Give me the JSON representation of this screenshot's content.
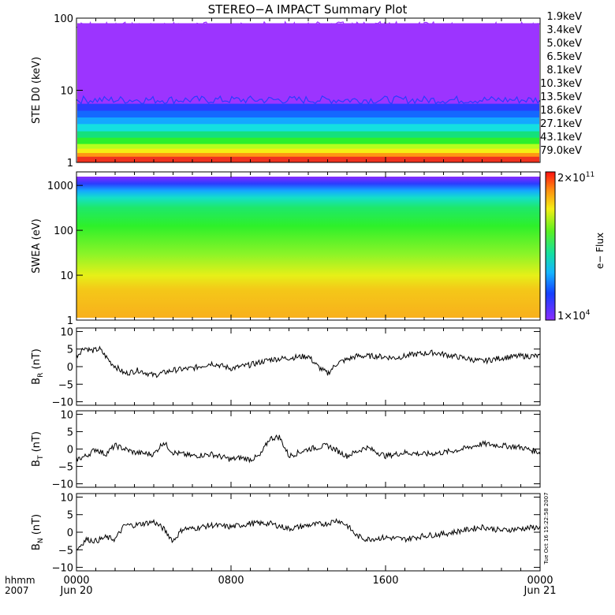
{
  "title": "STEREO−A IMPACT Summary Plot",
  "corner": {
    "line1": "hhmm",
    "line2": "2007"
  },
  "x_ticks": [
    "0000",
    "0800",
    "1600",
    "0000"
  ],
  "x_dates": [
    "Jun 20",
    "Jun 21"
  ],
  "colorbar": {
    "top": "2×10",
    "top_exp": "11",
    "bottom": "1×10",
    "bottom_exp": "4",
    "label": "e− Flux"
  },
  "timestamp": "Tue Oct 16 15:22:58 2007",
  "colors": {
    "channels": [
      "#9c34ff",
      "#2a3cff",
      "#1468ff",
      "#14a8ff",
      "#14e0e0",
      "#14e07c",
      "#2cf02c",
      "#b4ff1e",
      "#f4ee14",
      "#ff9614",
      "#f0321e"
    ]
  },
  "chart_data": [
    {
      "type": "line",
      "name": "ste",
      "ylabel": "STE D0 (keV)",
      "yscale": "log",
      "ylim": [
        1,
        100
      ],
      "y_ticks": [
        "1",
        "10",
        "100"
      ],
      "xlim_hours": [
        0,
        24
      ],
      "series": [
        {
          "name": "1.9keV",
          "level": 85
        },
        {
          "name": "3.4keV",
          "level": 6.5
        },
        {
          "name": "5.0keV",
          "level": 5.2
        },
        {
          "name": "6.5keV",
          "level": 4.2
        },
        {
          "name": "8.1keV",
          "level": 3.4
        },
        {
          "name": "10.3keV",
          "level": 2.7
        },
        {
          "name": "13.5keV",
          "level": 2.2
        },
        {
          "name": "18.6keV",
          "level": 1.8
        },
        {
          "name": "27.1keV",
          "level": 1.55
        },
        {
          "name": "43.1keV",
          "level": 1.35
        },
        {
          "name": "79.0keV",
          "level": 1.2
        }
      ]
    },
    {
      "type": "heatmap",
      "name": "swea",
      "ylabel": "SWEA (eV)",
      "yscale": "log",
      "ylim": [
        1,
        2000
      ],
      "y_ticks": [
        "1",
        "10",
        "100",
        "1000"
      ],
      "xlim_hours": [
        0,
        24
      ],
      "color_label": "e− Flux",
      "color_range": [
        10000,
        200000000000
      ]
    },
    {
      "type": "line",
      "name": "br",
      "ylabel": "B",
      "ylabel_sub": "R",
      "ylabel_unit": " (nT)",
      "ylim": [
        -11,
        11
      ],
      "y_ticks": [
        "10",
        "5",
        "0",
        "−5",
        "−10"
      ],
      "x_hours": [
        0,
        0.4,
        0.8,
        1.2,
        1.8,
        2.5,
        3.2,
        4.0,
        5.0,
        6.0,
        7.0,
        8.0,
        9.0,
        10.0,
        11.0,
        12.0,
        12.5,
        13.0,
        13.5,
        14.5,
        15.5,
        16.5,
        17.5,
        18.5,
        19.5,
        20.5,
        21.0,
        22.0,
        23.0,
        24.0
      ],
      "values": [
        3,
        5.5,
        4.5,
        5,
        1,
        -2,
        -1,
        -2.5,
        -1,
        -0.5,
        1,
        -0.5,
        0.5,
        2,
        2.5,
        3,
        0,
        -2,
        1,
        3,
        3,
        2.5,
        3.5,
        4,
        3,
        2,
        1.5,
        2.5,
        3,
        3
      ]
    },
    {
      "type": "line",
      "name": "bt",
      "ylabel": "B",
      "ylabel_sub": "T",
      "ylabel_unit": " (nT)",
      "ylim": [
        -11,
        11
      ],
      "y_ticks": [
        "10",
        "5",
        "0",
        "−5",
        "−10"
      ],
      "x_hours": [
        0,
        0.5,
        1.0,
        1.5,
        2.0,
        3.0,
        4.0,
        4.5,
        5.0,
        6.0,
        7.0,
        8.0,
        8.5,
        9.0,
        9.5,
        10.0,
        10.5,
        11.0,
        12.0,
        13.0,
        14.0,
        15.0,
        16.0,
        17.0,
        18.0,
        19.0,
        20.0,
        21.0,
        22.0,
        23.0,
        24.0
      ],
      "values": [
        -3,
        -2,
        0,
        -1.5,
        1,
        -1,
        -1.5,
        2,
        -1,
        -2,
        -1.5,
        -3,
        -2.5,
        -3,
        -2,
        3,
        3.5,
        -2,
        0,
        1,
        -2,
        0.5,
        -2,
        -1,
        -1.5,
        -1,
        0,
        1.5,
        1,
        0.5,
        -1
      ]
    },
    {
      "type": "line",
      "name": "bn",
      "ylabel": "B",
      "ylabel_sub": "N",
      "ylabel_unit": " (nT)",
      "ylim": [
        -11,
        11
      ],
      "y_ticks": [
        "10",
        "5",
        "0",
        "−5",
        "−10"
      ],
      "x_hours": [
        0,
        0.5,
        1.0,
        1.5,
        2.0,
        2.5,
        3.0,
        4.0,
        4.5,
        5.0,
        5.5,
        6.0,
        7.0,
        8.0,
        9.0,
        10.0,
        11.0,
        12.0,
        13.0,
        13.5,
        14.0,
        14.5,
        15.0,
        16.0,
        17.0,
        18.0,
        19.0,
        20.0,
        21.0,
        22.0,
        23.0,
        24.0
      ],
      "values": [
        -5,
        -2,
        -2.5,
        -1.5,
        -2,
        2,
        2,
        3,
        1,
        -2.5,
        1,
        1,
        2,
        1.5,
        2.5,
        2.5,
        1,
        2,
        2.5,
        3.5,
        2,
        -1,
        -2,
        -1.5,
        -2,
        -1,
        -0.5,
        0.5,
        1.5,
        0.5,
        1,
        1.5
      ]
    }
  ]
}
